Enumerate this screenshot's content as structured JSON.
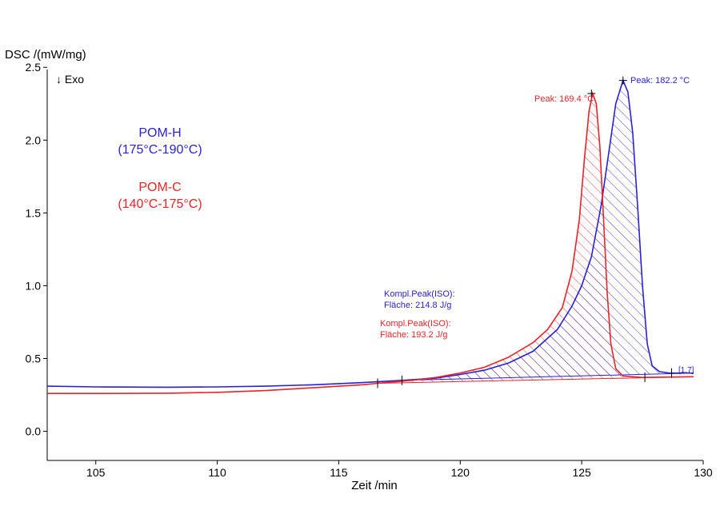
{
  "chart_data": {
    "type": "line",
    "title": "",
    "xlabel": "Zeit /min",
    "ylabel": "DSC /(mW/mg)",
    "exo_label": "↓ Exo",
    "xlim": [
      103,
      130
    ],
    "ylim": [
      -0.2,
      2.6
    ],
    "x_ticks": [
      105,
      110,
      115,
      120,
      125,
      130
    ],
    "y_ticks": [
      0.0,
      0.5,
      1.0,
      1.5,
      2.0,
      2.5
    ],
    "x_tick_labels": [
      "105",
      "110",
      "115",
      "120",
      "125",
      "130"
    ],
    "y_tick_labels": [
      "0.0",
      "0.5",
      "1.0",
      "1.5",
      "2.0",
      "2.5"
    ],
    "grid": false,
    "legend": [
      {
        "name": "POM-H",
        "range": "(175°C-190°C)",
        "color": "#2a22d0"
      },
      {
        "name": "POM-C",
        "range": "(140°C-175°C)",
        "color": "#e8242a"
      }
    ],
    "series": [
      {
        "name": "POM-H",
        "color": "#2a22d0",
        "points": [
          [
            103.0,
            0.31
          ],
          [
            105,
            0.305
          ],
          [
            108,
            0.303
          ],
          [
            110,
            0.305
          ],
          [
            112,
            0.31
          ],
          [
            114,
            0.32
          ],
          [
            116,
            0.335
          ],
          [
            117.6,
            0.35
          ],
          [
            119,
            0.365
          ],
          [
            120,
            0.39
          ],
          [
            121,
            0.42
          ],
          [
            122,
            0.47
          ],
          [
            123,
            0.55
          ],
          [
            124,
            0.7
          ],
          [
            124.6,
            0.86
          ],
          [
            125.0,
            1.0
          ],
          [
            125.4,
            1.2
          ],
          [
            125.8,
            1.55
          ],
          [
            126.1,
            1.9
          ],
          [
            126.4,
            2.25
          ],
          [
            126.7,
            2.41
          ],
          [
            126.9,
            2.33
          ],
          [
            127.1,
            2.05
          ],
          [
            127.3,
            1.55
          ],
          [
            127.5,
            1.0
          ],
          [
            127.7,
            0.6
          ],
          [
            127.9,
            0.45
          ],
          [
            128.2,
            0.41
          ],
          [
            128.6,
            0.4
          ],
          [
            129.6,
            0.4
          ]
        ],
        "peak": {
          "x": 126.7,
          "y": 2.41,
          "label": "Peak: 182.2 °C"
        },
        "area_label": "Kompl.Peak(ISO):",
        "area_value": "Fläche:  214.8 J/g",
        "integration_limits": [
          117.6,
          128.7
        ],
        "baseline": [
          [
            117.6,
            0.35
          ],
          [
            129.6,
            0.4
          ]
        ],
        "end_marker": "[1.7]"
      },
      {
        "name": "POM-C",
        "color": "#e8242a",
        "points": [
          [
            103.0,
            0.26
          ],
          [
            105,
            0.26
          ],
          [
            108,
            0.262
          ],
          [
            110,
            0.268
          ],
          [
            112,
            0.28
          ],
          [
            114,
            0.3
          ],
          [
            116,
            0.32
          ],
          [
            116.6,
            0.33
          ],
          [
            118,
            0.35
          ],
          [
            119,
            0.37
          ],
          [
            120,
            0.4
          ],
          [
            121,
            0.44
          ],
          [
            122,
            0.51
          ],
          [
            123,
            0.61
          ],
          [
            123.6,
            0.7
          ],
          [
            124.2,
            0.85
          ],
          [
            124.6,
            1.1
          ],
          [
            124.9,
            1.45
          ],
          [
            125.1,
            1.85
          ],
          [
            125.3,
            2.2
          ],
          [
            125.45,
            2.32
          ],
          [
            125.6,
            2.25
          ],
          [
            125.75,
            1.95
          ],
          [
            125.9,
            1.45
          ],
          [
            126.05,
            0.95
          ],
          [
            126.2,
            0.6
          ],
          [
            126.4,
            0.43
          ],
          [
            126.7,
            0.38
          ],
          [
            127.5,
            0.37
          ],
          [
            129.6,
            0.375
          ]
        ],
        "peak": {
          "x": 125.4,
          "y": 2.32,
          "label": "Peak: 169.4 °C"
        },
        "area_label": "Kompl.Peak(ISO):",
        "area_value": "Fläche:  193.2 J/g",
        "integration_limits": [
          116.6,
          127.6
        ],
        "baseline": [
          [
            116.6,
            0.33
          ],
          [
            129.6,
            0.375
          ]
        ],
        "end_marker": ""
      }
    ]
  }
}
